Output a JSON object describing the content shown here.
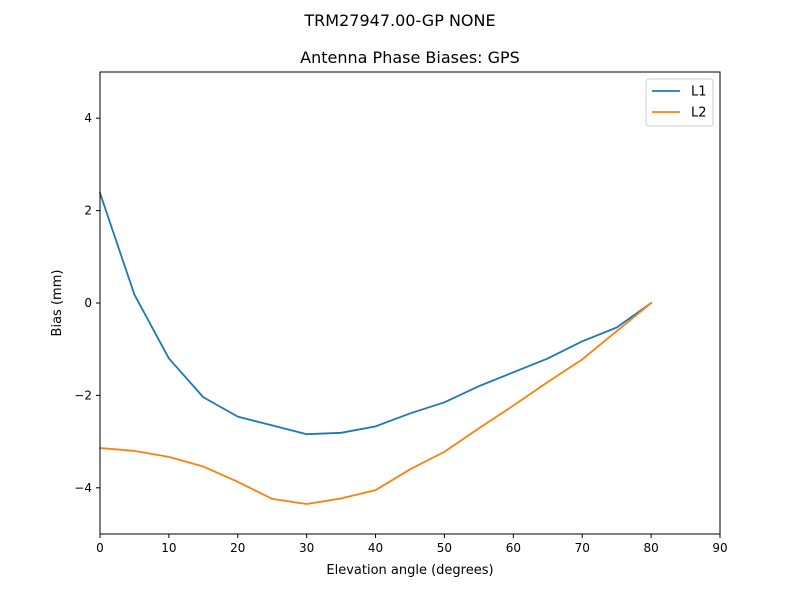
{
  "chart_data": {
    "type": "line",
    "suptitle": "TRM27947.00-GP  NONE",
    "title": "Antenna Phase Biases: GPS",
    "xlabel": "Elevation angle (degrees)",
    "ylabel": "Bias (mm)",
    "xlim": [
      0,
      90
    ],
    "ylim": [
      -5,
      5
    ],
    "xticks": [
      0,
      10,
      20,
      30,
      40,
      50,
      60,
      70,
      80,
      90
    ],
    "yticks": [
      -4,
      -2,
      0,
      2,
      4
    ],
    "x": [
      0,
      5,
      10,
      15,
      20,
      25,
      30,
      35,
      40,
      45,
      50,
      55,
      60,
      65,
      70,
      75,
      80
    ],
    "grid": false,
    "legend_position": "top-right",
    "series": [
      {
        "name": "L1",
        "color": "#1f77b4",
        "values": [
          2.38,
          0.18,
          -1.2,
          -2.04,
          -2.46,
          -2.65,
          -2.84,
          -2.81,
          -2.67,
          -2.39,
          -2.15,
          -1.8,
          -1.5,
          -1.2,
          -0.83,
          -0.53,
          0.0
        ]
      },
      {
        "name": "L2",
        "color": "#ff7f0e",
        "values": [
          -3.14,
          -3.2,
          -3.33,
          -3.54,
          -3.87,
          -4.24,
          -4.35,
          -4.23,
          -4.05,
          -3.6,
          -3.22,
          -2.71,
          -2.22,
          -1.71,
          -1.22,
          -0.61,
          0.0
        ]
      }
    ]
  }
}
